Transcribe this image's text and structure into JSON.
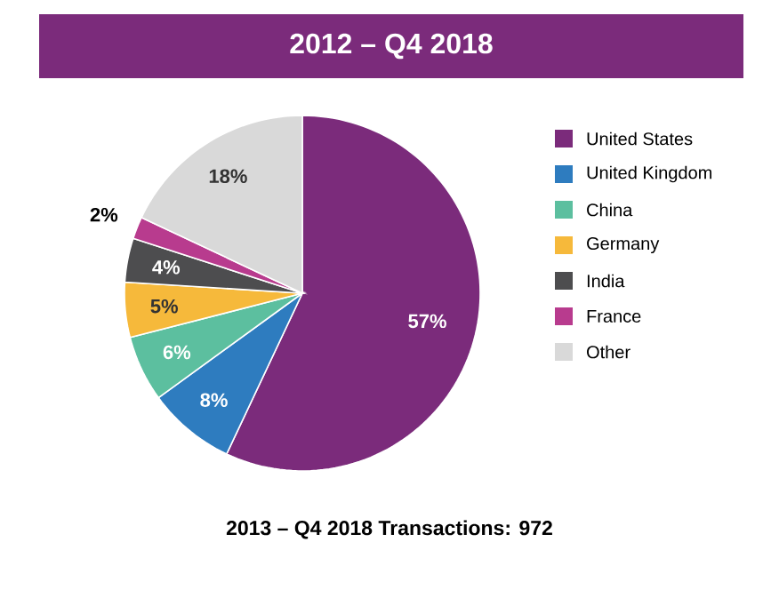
{
  "chart_data": {
    "type": "pie",
    "title": "2012 – Q4 2018",
    "categories": [
      "United States",
      "United Kingdom",
      "China",
      "Germany",
      "India",
      "France",
      "Other"
    ],
    "values": [
      57,
      8,
      6,
      5,
      4,
      2,
      18
    ],
    "value_labels": [
      "57%",
      "8%",
      "6%",
      "5%",
      "4%",
      "2%",
      "18%"
    ],
    "colors": [
      "#7b2b7b",
      "#2e7cbf",
      "#5cbf9f",
      "#f6b93b",
      "#4d4d4f",
      "#b83b8e",
      "#d9d9d9"
    ],
    "legend": "right",
    "annotations": [
      "2013 – Q4 2018 Transactions: 972"
    ]
  }
}
